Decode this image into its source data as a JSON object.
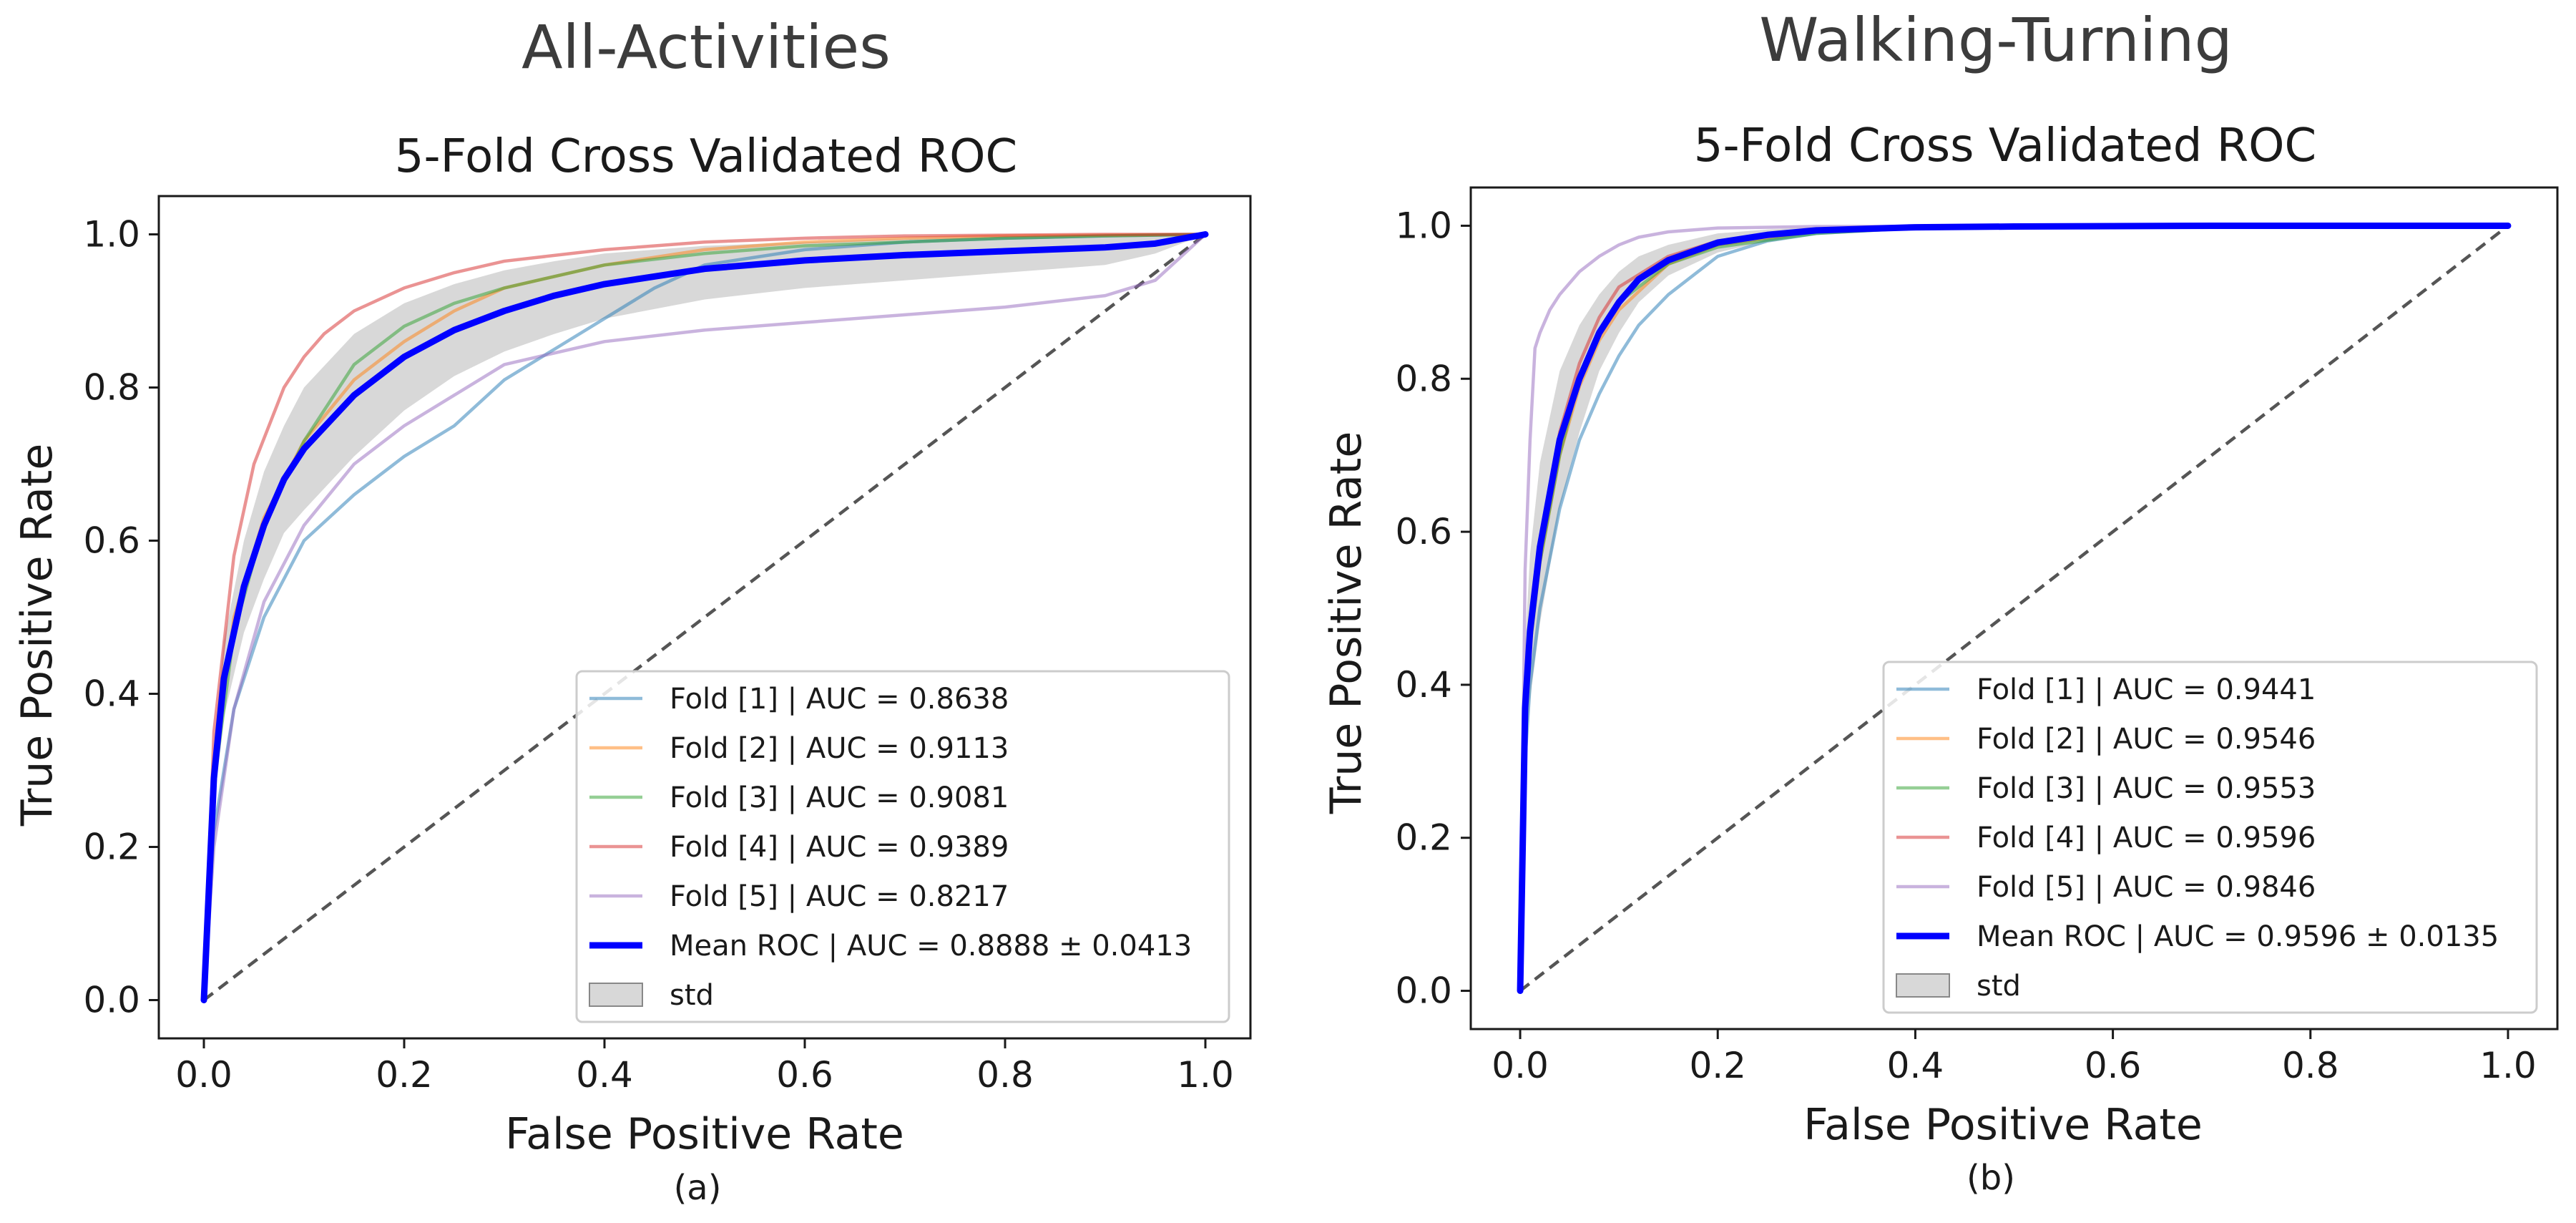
{
  "chart_data": [
    {
      "type": "line",
      "suptitle": "All-Activities",
      "title": "5-Fold Cross Validated ROC",
      "xlabel": "False Positive Rate",
      "ylabel": "True Positive Rate",
      "caption": "(a)",
      "xlim": [
        -0.045,
        1.045
      ],
      "ylim": [
        -0.05,
        1.05
      ],
      "xticks": [
        0.0,
        0.2,
        0.4,
        0.6,
        0.8,
        1.0
      ],
      "yticks": [
        0.0,
        0.2,
        0.4,
        0.6,
        0.8,
        1.0
      ],
      "tick_labels": [
        "0.0",
        "0.2",
        "0.4",
        "0.6",
        "0.8",
        "1.0"
      ],
      "legend_position": "lower right",
      "series": [
        {
          "name": "Fold [1] | AUC = 0.8638",
          "color": "#1f77b4",
          "x": [
            0,
            0.01,
            0.03,
            0.06,
            0.1,
            0.15,
            0.2,
            0.25,
            0.3,
            0.35,
            0.4,
            0.45,
            0.5,
            0.6,
            0.7,
            0.8,
            0.9,
            1.0
          ],
          "y": [
            0,
            0.22,
            0.38,
            0.5,
            0.6,
            0.66,
            0.71,
            0.75,
            0.81,
            0.85,
            0.89,
            0.93,
            0.96,
            0.98,
            0.99,
            0.995,
            0.998,
            1.0
          ]
        },
        {
          "name": "Fold [2] | AUC = 0.9113",
          "color": "#ff7f0e",
          "x": [
            0,
            0.01,
            0.03,
            0.06,
            0.1,
            0.15,
            0.2,
            0.25,
            0.3,
            0.4,
            0.5,
            0.6,
            0.7,
            0.8,
            0.9,
            1.0
          ],
          "y": [
            0,
            0.3,
            0.5,
            0.63,
            0.73,
            0.81,
            0.86,
            0.9,
            0.93,
            0.96,
            0.98,
            0.99,
            0.995,
            0.998,
            0.999,
            1.0
          ]
        },
        {
          "name": "Fold [3] | AUC = 0.9081",
          "color": "#2ca02c",
          "x": [
            0,
            0.01,
            0.03,
            0.06,
            0.1,
            0.15,
            0.2,
            0.25,
            0.3,
            0.4,
            0.5,
            0.6,
            0.7,
            0.8,
            0.9,
            1.0
          ],
          "y": [
            0,
            0.28,
            0.48,
            0.62,
            0.73,
            0.83,
            0.88,
            0.91,
            0.93,
            0.96,
            0.975,
            0.985,
            0.99,
            0.995,
            0.998,
            1.0
          ]
        },
        {
          "name": "Fold [4] | AUC = 0.9389",
          "color": "#d62728",
          "x": [
            0,
            0.01,
            0.03,
            0.05,
            0.08,
            0.1,
            0.12,
            0.15,
            0.2,
            0.25,
            0.3,
            0.4,
            0.5,
            0.6,
            0.7,
            0.8,
            0.9,
            1.0
          ],
          "y": [
            0,
            0.35,
            0.58,
            0.7,
            0.8,
            0.84,
            0.87,
            0.9,
            0.93,
            0.95,
            0.965,
            0.98,
            0.99,
            0.995,
            0.998,
            0.999,
            1.0,
            1.0
          ]
        },
        {
          "name": "Fold [5] | AUC = 0.8217",
          "color": "#9467bd",
          "x": [
            0,
            0.01,
            0.03,
            0.06,
            0.1,
            0.15,
            0.2,
            0.25,
            0.3,
            0.4,
            0.5,
            0.6,
            0.7,
            0.8,
            0.9,
            0.95,
            1.0
          ],
          "y": [
            0,
            0.2,
            0.38,
            0.52,
            0.62,
            0.7,
            0.75,
            0.79,
            0.83,
            0.86,
            0.875,
            0.885,
            0.895,
            0.905,
            0.92,
            0.94,
            1.0
          ]
        },
        {
          "name": "Mean ROC | AUC = 0.8888 ± 0.0413",
          "color": "#0000ff",
          "bold": true,
          "x": [
            0,
            0.01,
            0.02,
            0.04,
            0.06,
            0.08,
            0.1,
            0.15,
            0.2,
            0.25,
            0.3,
            0.35,
            0.4,
            0.5,
            0.6,
            0.7,
            0.8,
            0.9,
            0.95,
            1.0
          ],
          "y": [
            0,
            0.29,
            0.42,
            0.54,
            0.62,
            0.68,
            0.72,
            0.79,
            0.84,
            0.875,
            0.9,
            0.92,
            0.935,
            0.955,
            0.966,
            0.973,
            0.978,
            0.983,
            0.988,
            1.0
          ]
        }
      ],
      "band": {
        "name": "std",
        "color": "#a9a9a9",
        "x": [
          0,
          0.01,
          0.02,
          0.04,
          0.06,
          0.08,
          0.1,
          0.15,
          0.2,
          0.25,
          0.3,
          0.35,
          0.4,
          0.5,
          0.6,
          0.7,
          0.8,
          0.9,
          0.95,
          1.0
        ],
        "upper": [
          0,
          0.33,
          0.47,
          0.6,
          0.69,
          0.75,
          0.8,
          0.87,
          0.91,
          0.935,
          0.953,
          0.965,
          0.975,
          0.985,
          0.99,
          0.995,
          0.997,
          0.998,
          0.999,
          1.0
        ],
        "lower": [
          0,
          0.25,
          0.37,
          0.48,
          0.55,
          0.61,
          0.64,
          0.71,
          0.77,
          0.815,
          0.847,
          0.87,
          0.89,
          0.915,
          0.93,
          0.94,
          0.95,
          0.96,
          0.975,
          1.0
        ]
      },
      "diagonal": {
        "x": [
          0,
          1
        ],
        "y": [
          0,
          1
        ]
      }
    },
    {
      "type": "line",
      "suptitle": "Walking-Turning",
      "title": "5-Fold Cross Validated ROC",
      "xlabel": "False Positive Rate",
      "ylabel": "True Positive Rate",
      "caption": "(b)",
      "xlim": [
        -0.05,
        1.05
      ],
      "ylim": [
        -0.05,
        1.05
      ],
      "xticks": [
        0.0,
        0.2,
        0.4,
        0.6,
        0.8,
        1.0
      ],
      "yticks": [
        0.0,
        0.2,
        0.4,
        0.6,
        0.8,
        1.0
      ],
      "tick_labels": [
        "0.0",
        "0.2",
        "0.4",
        "0.6",
        "0.8",
        "1.0"
      ],
      "legend_position": "lower right",
      "series": [
        {
          "name": "Fold [1] | AUC = 0.9441",
          "color": "#1f77b4",
          "x": [
            0,
            0.005,
            0.01,
            0.02,
            0.04,
            0.06,
            0.08,
            0.1,
            0.12,
            0.15,
            0.2,
            0.25,
            0.3,
            0.4,
            0.5,
            0.7,
            1.0
          ],
          "y": [
            0,
            0.3,
            0.4,
            0.5,
            0.63,
            0.72,
            0.78,
            0.83,
            0.87,
            0.91,
            0.96,
            0.98,
            0.99,
            0.997,
            0.999,
            1.0,
            1.0
          ]
        },
        {
          "name": "Fold [2] | AUC = 0.9546",
          "color": "#ff7f0e",
          "x": [
            0,
            0.005,
            0.01,
            0.02,
            0.04,
            0.06,
            0.08,
            0.1,
            0.15,
            0.2,
            0.3,
            0.4,
            0.5,
            1.0
          ],
          "y": [
            0,
            0.35,
            0.45,
            0.56,
            0.7,
            0.79,
            0.85,
            0.89,
            0.95,
            0.975,
            0.993,
            0.998,
            1.0,
            1.0
          ]
        },
        {
          "name": "Fold [3] | AUC = 0.9553",
          "color": "#2ca02c",
          "x": [
            0,
            0.005,
            0.01,
            0.02,
            0.04,
            0.06,
            0.08,
            0.1,
            0.15,
            0.2,
            0.3,
            0.4,
            0.5,
            1.0
          ],
          "y": [
            0,
            0.35,
            0.45,
            0.56,
            0.7,
            0.8,
            0.86,
            0.9,
            0.95,
            0.972,
            0.99,
            0.997,
            1.0,
            1.0
          ]
        },
        {
          "name": "Fold [4] | AUC = 0.9596",
          "color": "#d62728",
          "x": [
            0,
            0.005,
            0.01,
            0.02,
            0.04,
            0.06,
            0.08,
            0.1,
            0.15,
            0.2,
            0.3,
            0.4,
            1.0
          ],
          "y": [
            0,
            0.38,
            0.48,
            0.58,
            0.73,
            0.82,
            0.88,
            0.92,
            0.96,
            0.98,
            0.995,
            0.999,
            1.0
          ]
        },
        {
          "name": "Fold [5] | AUC = 0.9846",
          "color": "#9467bd",
          "x": [
            0,
            0.005,
            0.01,
            0.015,
            0.02,
            0.03,
            0.04,
            0.06,
            0.08,
            0.1,
            0.12,
            0.15,
            0.2,
            0.3,
            1.0
          ],
          "y": [
            0,
            0.55,
            0.72,
            0.84,
            0.86,
            0.89,
            0.91,
            0.94,
            0.96,
            0.975,
            0.985,
            0.992,
            0.997,
            0.999,
            1.0
          ]
        },
        {
          "name": "Mean ROC | AUC = 0.9596 ± 0.0135",
          "color": "#0000ff",
          "bold": true,
          "x": [
            0,
            0.005,
            0.01,
            0.02,
            0.04,
            0.06,
            0.08,
            0.1,
            0.12,
            0.15,
            0.2,
            0.25,
            0.3,
            0.4,
            0.5,
            0.7,
            1.0
          ],
          "y": [
            0,
            0.37,
            0.47,
            0.58,
            0.72,
            0.8,
            0.86,
            0.9,
            0.93,
            0.955,
            0.978,
            0.988,
            0.994,
            0.998,
            0.999,
            1.0,
            1.0
          ]
        }
      ],
      "band": {
        "name": "std",
        "color": "#a9a9a9",
        "x": [
          0,
          0.005,
          0.01,
          0.02,
          0.04,
          0.06,
          0.08,
          0.1,
          0.12,
          0.15,
          0.2,
          0.25,
          0.3,
          0.4,
          0.5,
          0.7,
          1.0
        ],
        "upper": [
          0,
          0.45,
          0.57,
          0.69,
          0.81,
          0.87,
          0.91,
          0.94,
          0.96,
          0.975,
          0.99,
          0.995,
          0.998,
          0.999,
          1.0,
          1.0,
          1.0
        ],
        "lower": [
          0,
          0.3,
          0.38,
          0.48,
          0.63,
          0.73,
          0.81,
          0.86,
          0.9,
          0.935,
          0.965,
          0.98,
          0.99,
          0.996,
          0.998,
          1.0,
          1.0
        ]
      },
      "diagonal": {
        "x": [
          0,
          1
        ],
        "y": [
          0,
          1
        ]
      }
    }
  ]
}
